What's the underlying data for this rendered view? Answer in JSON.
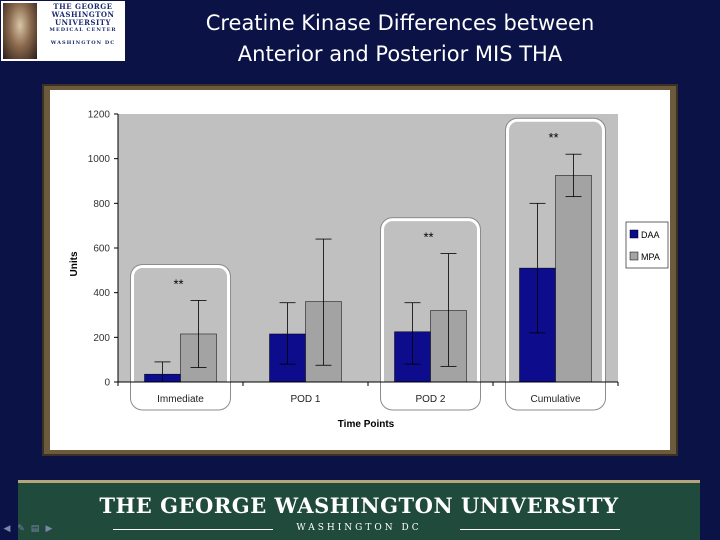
{
  "logo": {
    "line1": "THE GEORGE",
    "line2": "WASHINGTON",
    "line3": "UNIVERSITY",
    "line4": "MEDICAL CENTER",
    "line5": "WASHINGTON DC"
  },
  "slide_title": {
    "line1": "Creatine Kinase Differences between",
    "line2": "Anterior and Posterior MIS THA"
  },
  "chart_data": {
    "type": "bar",
    "title": "",
    "xlabel": "Time Points",
    "ylabel": "Units",
    "ylim": [
      0,
      1200
    ],
    "yticks": [
      0,
      200,
      400,
      600,
      800,
      1000,
      1200
    ],
    "categories": [
      "Immediate",
      "POD 1",
      "POD 2",
      "Cumulative"
    ],
    "series": [
      {
        "name": "DAA",
        "color": "#0c0c8c",
        "values": [
          35,
          215,
          225,
          510
        ],
        "error_high": [
          90,
          355,
          355,
          800
        ],
        "error_low": [
          0,
          80,
          80,
          220
        ]
      },
      {
        "name": "MPA",
        "color": "#a3a3a3",
        "values": [
          215,
          360,
          320,
          925
        ],
        "error_high": [
          365,
          640,
          575,
          1020
        ],
        "error_low": [
          65,
          75,
          70,
          830
        ]
      }
    ],
    "annotations": [
      {
        "category": "Immediate",
        "text": "**"
      },
      {
        "category": "POD 2",
        "text": "**"
      },
      {
        "category": "Cumulative",
        "text": "**"
      }
    ],
    "highlighted_categories": [
      "Immediate",
      "POD 2",
      "Cumulative"
    ],
    "legend_position": "right",
    "grid": false
  },
  "banner": {
    "title": "THE GEORGE WASHINGTON UNIVERSITY",
    "subtitle": "WASHINGTON DC"
  },
  "nav": {
    "prev_icon": "arrow-left-icon",
    "pen_icon": "pen-icon",
    "menu_icon": "menu-icon",
    "next_icon": "arrow-right-icon"
  }
}
